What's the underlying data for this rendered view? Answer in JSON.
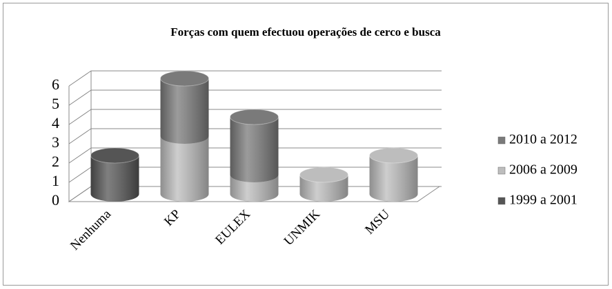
{
  "chart_data": {
    "type": "bar3d-stacked-cylinder",
    "title": "Forças com quem efectuou operações de cerco e busca",
    "categories": [
      "Nenhuma",
      "KP",
      "EULEX",
      "UNMIK",
      "MSU"
    ],
    "series": [
      {
        "name": "1999 a 2001",
        "color": "#555555",
        "values": [
          2,
          0,
          0,
          0,
          0
        ]
      },
      {
        "name": "2006 a 2009",
        "color": "#bdbdbd",
        "values": [
          0,
          3,
          1,
          1,
          2
        ]
      },
      {
        "name": "2010 a 2012",
        "color": "#7a7a7a",
        "values": [
          0,
          3,
          3,
          0,
          0
        ]
      }
    ],
    "ylim": [
      0,
      6
    ],
    "yticks": [
      0,
      1,
      2,
      3,
      4,
      5,
      6
    ],
    "grid": true,
    "legend": "right"
  }
}
